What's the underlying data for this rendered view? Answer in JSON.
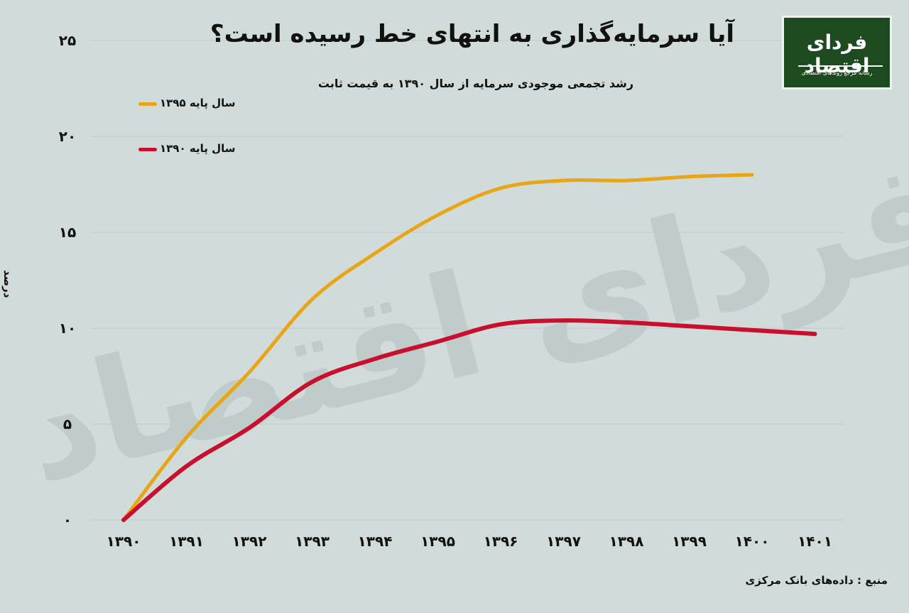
{
  "header": {
    "title": "آیا سرمایه‌گذاری به انتهای خط رسیده است؟",
    "subtitle": "رشد تجمعی موجودی سرمایه از سال ۱۳۹۰ به قیمت ثابت"
  },
  "logo": {
    "name": "فردای اقتصاد",
    "tagline": "رسانه مرجع روندهای اقتصادی"
  },
  "watermark": "فردای اقتصاد",
  "source": "منبع : داده‌های بانک مرکزی",
  "colors": {
    "background": "#d1dcda",
    "base1395": "#e8a617",
    "base1390": "#c8102e",
    "grid": "#bfcac8",
    "logo_bg": "#1d4a1f"
  },
  "chart_data": {
    "type": "line",
    "title": "آیا سرمایه‌گذاری به انتهای خط رسیده است؟",
    "subtitle": "رشد تجمعی موجودی سرمایه از سال ۱۳۹۰ به قیمت ثابت",
    "xlabel": "",
    "ylabel": "درصد",
    "categories": [
      "۱۳۹۰",
      "۱۳۹۱",
      "۱۳۹۲",
      "۱۳۹۳",
      "۱۳۹۴",
      "۱۳۹۵",
      "۱۳۹۶",
      "۱۳۹۷",
      "۱۳۹۸",
      "۱۳۹۹",
      "۱۴۰۰",
      "۱۴۰۱"
    ],
    "yticks": [
      "۰",
      "۵",
      "۱۰",
      "۱۵",
      "۲۰",
      "۲۵"
    ],
    "ylim": [
      0,
      25
    ],
    "grid": true,
    "legend_position": "top-left",
    "series": [
      {
        "name": "سال پایه ۱۳۹۵",
        "color": "#e8a617",
        "values": [
          0,
          4.3,
          7.7,
          11.5,
          13.9,
          15.9,
          17.3,
          17.7,
          17.7,
          17.9,
          18.0,
          null
        ]
      },
      {
        "name": "سال پایه ۱۳۹۰",
        "color": "#c8102e",
        "values": [
          0,
          2.8,
          4.8,
          7.2,
          8.4,
          9.3,
          10.2,
          10.4,
          10.3,
          10.1,
          9.9,
          9.7
        ]
      }
    ]
  }
}
